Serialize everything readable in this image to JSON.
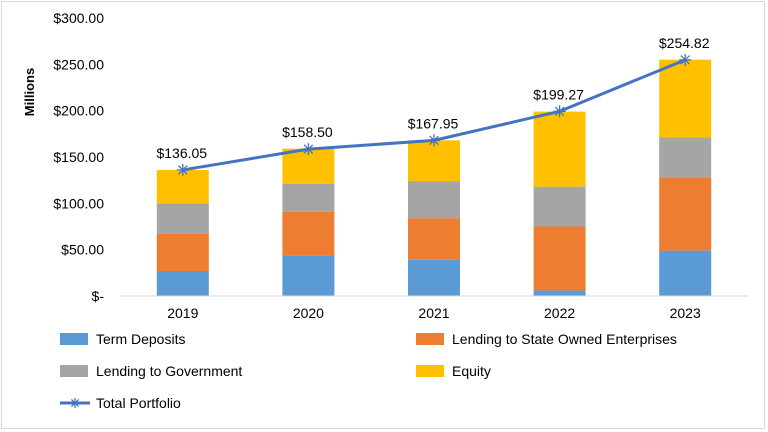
{
  "chart_data": {
    "type": "bar",
    "stacked": true,
    "categories": [
      "2019",
      "2020",
      "2021",
      "2022",
      "2023"
    ],
    "ylabel": "Millions",
    "ylim": [
      0,
      300
    ],
    "yticks": [
      0,
      50,
      100,
      150,
      200,
      250,
      300
    ],
    "ytick_labels": [
      "$-",
      "$50.00",
      "$100.00",
      "$150.00",
      "$200.00",
      "$250.00",
      "$300.00"
    ],
    "grid": false,
    "legend_position": "bottom",
    "series": [
      {
        "name": "Term Deposits",
        "type": "bar",
        "color": "#5B9BD5",
        "values": [
          27,
          44,
          39,
          6,
          49
        ]
      },
      {
        "name": "Lending to State Owned Enterprises",
        "type": "bar",
        "color": "#ED7D31",
        "values": [
          40,
          47,
          45,
          69,
          79
        ]
      },
      {
        "name": "Lending to Government",
        "type": "bar",
        "color": "#A5A5A5",
        "values": [
          33,
          30,
          40,
          43,
          43
        ]
      },
      {
        "name": "Equity",
        "type": "bar",
        "color": "#FFC000",
        "values": [
          36,
          38,
          44,
          81,
          84
        ]
      },
      {
        "name": "Total Portfolio",
        "type": "line",
        "color": "#4472C4",
        "marker": "star",
        "values": [
          136.05,
          158.5,
          167.95,
          199.27,
          254.82
        ],
        "labels": [
          "$136.05",
          "$158.50",
          "$167.95",
          "$199.27",
          "$254.82"
        ]
      }
    ]
  }
}
